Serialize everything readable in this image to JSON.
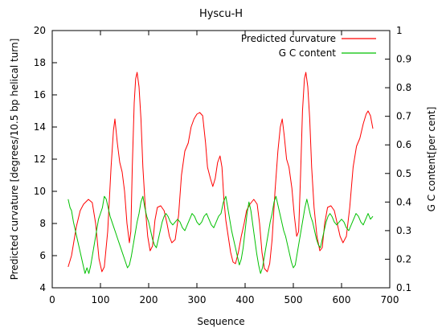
{
  "chart_data": {
    "type": "line",
    "title": "Hyscu-H",
    "xlabel": "Sequence",
    "ylabel_left": "Predicted curvature [degrees/10.5 bp helical turn]",
    "ylabel_right": "G C content[per cent]",
    "xlim": [
      0,
      700
    ],
    "ylim_left": [
      4,
      20
    ],
    "ylim_right": [
      0.1,
      1
    ],
    "x_ticks": [
      "0",
      "100",
      "200",
      "300",
      "400",
      "500",
      "600",
      "700"
    ],
    "y_left_ticks": [
      "4",
      "6",
      "8",
      "10",
      "12",
      "14",
      "16",
      "18",
      "20"
    ],
    "y_right_ticks": [
      "0.1",
      "0.2",
      "0.3",
      "0.4",
      "0.5",
      "0.6",
      "0.7",
      "0.8",
      "0.9",
      "1"
    ],
    "grid": false,
    "legend_position": "top-right",
    "series": [
      {
        "name": "Predicted curvature",
        "axis": "left",
        "color": "#ff0000",
        "points": [
          [
            33,
            5.3
          ],
          [
            40,
            6.0
          ],
          [
            50,
            7.8
          ],
          [
            58,
            8.8
          ],
          [
            65,
            9.2
          ],
          [
            75,
            9.5
          ],
          [
            83,
            9.3
          ],
          [
            90,
            8.0
          ],
          [
            97,
            5.8
          ],
          [
            103,
            5.0
          ],
          [
            108,
            5.3
          ],
          [
            115,
            7.5
          ],
          [
            122,
            11.5
          ],
          [
            127,
            13.8
          ],
          [
            130,
            14.5
          ],
          [
            135,
            13.0
          ],
          [
            140,
            11.8
          ],
          [
            145,
            11.2
          ],
          [
            150,
            10.0
          ],
          [
            155,
            8.0
          ],
          [
            160,
            6.8
          ],
          [
            163,
            7.5
          ],
          [
            166,
            11.5
          ],
          [
            170,
            15.5
          ],
          [
            173,
            17.0
          ],
          [
            176,
            17.4
          ],
          [
            180,
            16.5
          ],
          [
            184,
            14.5
          ],
          [
            188,
            11.5
          ],
          [
            193,
            9.0
          ],
          [
            198,
            7.2
          ],
          [
            203,
            6.3
          ],
          [
            208,
            6.6
          ],
          [
            213,
            8.2
          ],
          [
            218,
            9.0
          ],
          [
            225,
            9.1
          ],
          [
            232,
            8.8
          ],
          [
            238,
            8.0
          ],
          [
            243,
            7.2
          ],
          [
            248,
            6.8
          ],
          [
            255,
            7.0
          ],
          [
            262,
            8.5
          ],
          [
            268,
            11.0
          ],
          [
            275,
            12.5
          ],
          [
            282,
            13.0
          ],
          [
            288,
            14.0
          ],
          [
            294,
            14.5
          ],
          [
            300,
            14.8
          ],
          [
            306,
            14.9
          ],
          [
            312,
            14.7
          ],
          [
            318,
            13.0
          ],
          [
            322,
            11.5
          ],
          [
            328,
            10.8
          ],
          [
            333,
            10.3
          ],
          [
            338,
            10.8
          ],
          [
            343,
            11.8
          ],
          [
            348,
            12.2
          ],
          [
            352,
            11.5
          ],
          [
            356,
            9.5
          ],
          [
            360,
            8.2
          ],
          [
            365,
            7.2
          ],
          [
            370,
            6.2
          ],
          [
            375,
            5.6
          ],
          [
            380,
            5.5
          ],
          [
            386,
            6.2
          ],
          [
            392,
            7.2
          ],
          [
            398,
            8.0
          ],
          [
            403,
            8.8
          ],
          [
            410,
            9.2
          ],
          [
            418,
            9.5
          ],
          [
            425,
            9.2
          ],
          [
            430,
            8.0
          ],
          [
            435,
            6.2
          ],
          [
            440,
            5.2
          ],
          [
            446,
            5.0
          ],
          [
            451,
            5.5
          ],
          [
            456,
            7.0
          ],
          [
            462,
            10.0
          ],
          [
            468,
            12.5
          ],
          [
            473,
            14.0
          ],
          [
            477,
            14.5
          ],
          [
            481,
            13.5
          ],
          [
            486,
            12.0
          ],
          [
            491,
            11.5
          ],
          [
            497,
            10.2
          ],
          [
            502,
            8.5
          ],
          [
            507,
            7.2
          ],
          [
            511,
            7.5
          ],
          [
            515,
            11.0
          ],
          [
            519,
            15.0
          ],
          [
            523,
            17.0
          ],
          [
            526,
            17.4
          ],
          [
            530,
            16.5
          ],
          [
            534,
            14.5
          ],
          [
            538,
            11.5
          ],
          [
            543,
            9.0
          ],
          [
            549,
            7.2
          ],
          [
            555,
            6.3
          ],
          [
            560,
            6.5
          ],
          [
            565,
            8.0
          ],
          [
            571,
            9.0
          ],
          [
            578,
            9.1
          ],
          [
            585,
            8.8
          ],
          [
            591,
            8.0
          ],
          [
            597,
            7.2
          ],
          [
            603,
            6.8
          ],
          [
            610,
            7.2
          ],
          [
            617,
            9.0
          ],
          [
            624,
            11.5
          ],
          [
            631,
            12.8
          ],
          [
            638,
            13.3
          ],
          [
            645,
            14.2
          ],
          [
            651,
            14.8
          ],
          [
            655,
            15.0
          ],
          [
            660,
            14.7
          ],
          [
            665,
            13.9
          ]
        ]
      },
      {
        "name": "G C content",
        "axis": "right",
        "color": "#00c000",
        "points": [
          [
            33,
            0.41
          ],
          [
            37,
            0.38
          ],
          [
            40,
            0.37
          ],
          [
            44,
            0.33
          ],
          [
            48,
            0.3
          ],
          [
            52,
            0.27
          ],
          [
            56,
            0.24
          ],
          [
            60,
            0.21
          ],
          [
            64,
            0.18
          ],
          [
            68,
            0.15
          ],
          [
            72,
            0.17
          ],
          [
            76,
            0.15
          ],
          [
            80,
            0.18
          ],
          [
            84,
            0.22
          ],
          [
            88,
            0.26
          ],
          [
            92,
            0.3
          ],
          [
            96,
            0.34
          ],
          [
            100,
            0.36
          ],
          [
            104,
            0.38
          ],
          [
            108,
            0.42
          ],
          [
            112,
            0.41
          ],
          [
            116,
            0.38
          ],
          [
            120,
            0.35
          ],
          [
            124,
            0.33
          ],
          [
            128,
            0.31
          ],
          [
            132,
            0.29
          ],
          [
            136,
            0.27
          ],
          [
            140,
            0.25
          ],
          [
            144,
            0.23
          ],
          [
            148,
            0.21
          ],
          [
            152,
            0.19
          ],
          [
            156,
            0.17
          ],
          [
            160,
            0.18
          ],
          [
            164,
            0.21
          ],
          [
            168,
            0.25
          ],
          [
            172,
            0.29
          ],
          [
            176,
            0.33
          ],
          [
            180,
            0.36
          ],
          [
            184,
            0.4
          ],
          [
            188,
            0.42
          ],
          [
            192,
            0.38
          ],
          [
            196,
            0.35
          ],
          [
            200,
            0.33
          ],
          [
            204,
            0.3
          ],
          [
            208,
            0.27
          ],
          [
            212,
            0.25
          ],
          [
            216,
            0.24
          ],
          [
            220,
            0.27
          ],
          [
            224,
            0.3
          ],
          [
            228,
            0.33
          ],
          [
            232,
            0.35
          ],
          [
            236,
            0.36
          ],
          [
            240,
            0.35
          ],
          [
            245,
            0.33
          ],
          [
            250,
            0.32
          ],
          [
            255,
            0.33
          ],
          [
            260,
            0.34
          ],
          [
            265,
            0.33
          ],
          [
            270,
            0.31
          ],
          [
            275,
            0.3
          ],
          [
            280,
            0.32
          ],
          [
            285,
            0.34
          ],
          [
            290,
            0.36
          ],
          [
            295,
            0.35
          ],
          [
            300,
            0.33
          ],
          [
            305,
            0.32
          ],
          [
            310,
            0.33
          ],
          [
            315,
            0.35
          ],
          [
            320,
            0.36
          ],
          [
            325,
            0.34
          ],
          [
            330,
            0.32
          ],
          [
            335,
            0.31
          ],
          [
            340,
            0.33
          ],
          [
            345,
            0.35
          ],
          [
            350,
            0.36
          ],
          [
            355,
            0.4
          ],
          [
            360,
            0.42
          ],
          [
            364,
            0.38
          ],
          [
            368,
            0.34
          ],
          [
            372,
            0.3
          ],
          [
            376,
            0.27
          ],
          [
            380,
            0.24
          ],
          [
            384,
            0.21
          ],
          [
            388,
            0.18
          ],
          [
            392,
            0.2
          ],
          [
            396,
            0.24
          ],
          [
            400,
            0.3
          ],
          [
            404,
            0.36
          ],
          [
            408,
            0.4
          ],
          [
            412,
            0.37
          ],
          [
            416,
            0.32
          ],
          [
            420,
            0.27
          ],
          [
            424,
            0.22
          ],
          [
            428,
            0.18
          ],
          [
            432,
            0.15
          ],
          [
            436,
            0.17
          ],
          [
            440,
            0.21
          ],
          [
            444,
            0.25
          ],
          [
            448,
            0.29
          ],
          [
            452,
            0.33
          ],
          [
            456,
            0.36
          ],
          [
            460,
            0.4
          ],
          [
            464,
            0.42
          ],
          [
            468,
            0.39
          ],
          [
            472,
            0.36
          ],
          [
            476,
            0.33
          ],
          [
            480,
            0.3
          ],
          [
            484,
            0.28
          ],
          [
            488,
            0.25
          ],
          [
            492,
            0.22
          ],
          [
            496,
            0.19
          ],
          [
            500,
            0.17
          ],
          [
            504,
            0.18
          ],
          [
            508,
            0.22
          ],
          [
            512,
            0.26
          ],
          [
            516,
            0.3
          ],
          [
            520,
            0.34
          ],
          [
            524,
            0.38
          ],
          [
            528,
            0.41
          ],
          [
            532,
            0.38
          ],
          [
            536,
            0.35
          ],
          [
            540,
            0.33
          ],
          [
            544,
            0.3
          ],
          [
            548,
            0.27
          ],
          [
            552,
            0.25
          ],
          [
            556,
            0.24
          ],
          [
            560,
            0.27
          ],
          [
            564,
            0.3
          ],
          [
            568,
            0.33
          ],
          [
            572,
            0.35
          ],
          [
            576,
            0.36
          ],
          [
            580,
            0.35
          ],
          [
            585,
            0.33
          ],
          [
            590,
            0.32
          ],
          [
            595,
            0.33
          ],
          [
            600,
            0.34
          ],
          [
            605,
            0.33
          ],
          [
            610,
            0.31
          ],
          [
            615,
            0.3
          ],
          [
            620,
            0.32
          ],
          [
            625,
            0.34
          ],
          [
            630,
            0.36
          ],
          [
            635,
            0.35
          ],
          [
            640,
            0.33
          ],
          [
            645,
            0.32
          ],
          [
            650,
            0.34
          ],
          [
            655,
            0.36
          ],
          [
            660,
            0.34
          ],
          [
            665,
            0.35
          ]
        ]
      }
    ]
  }
}
